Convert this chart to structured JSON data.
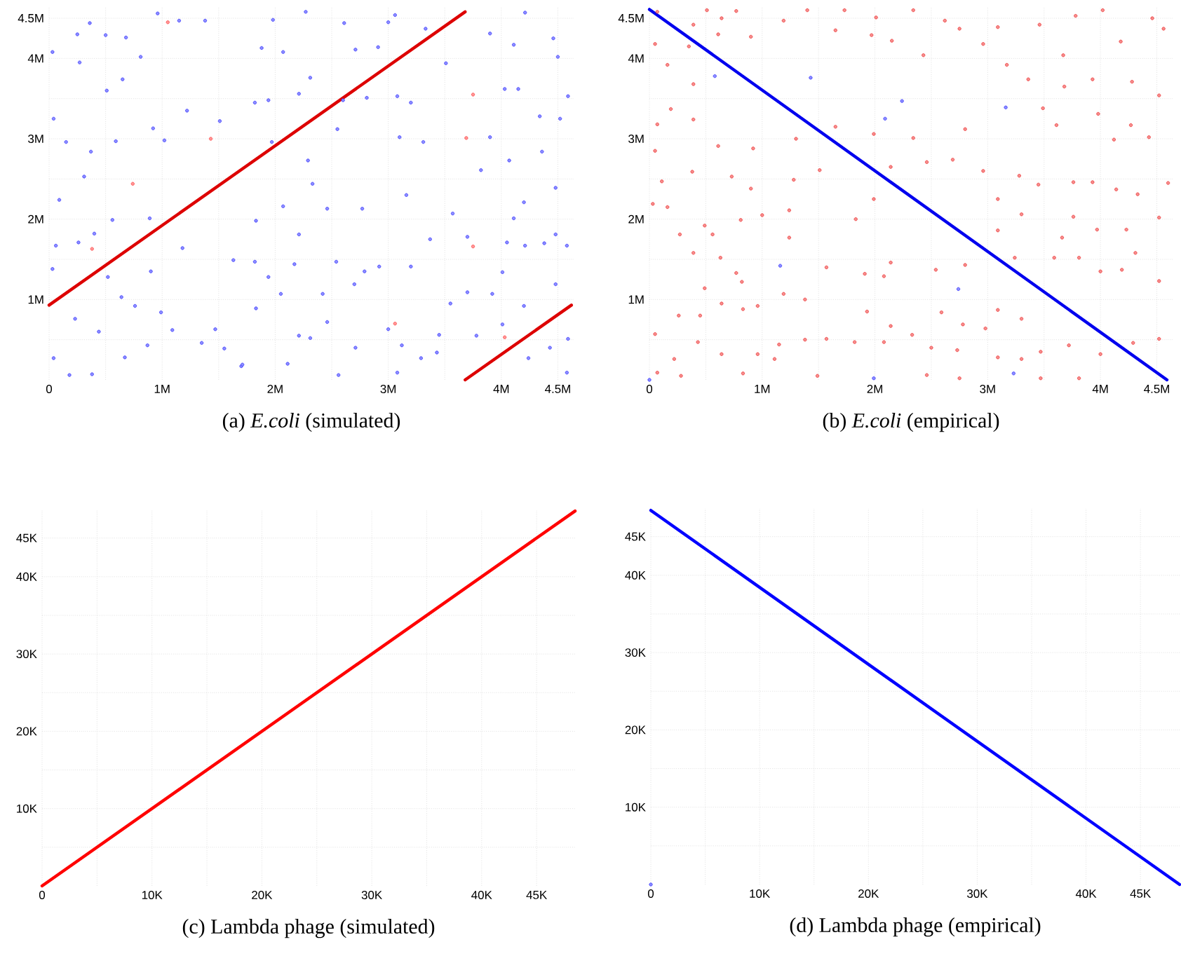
{
  "chart_data": [
    {
      "type": "scatter",
      "title": "(a) *E.coli* (simulated)",
      "xlim": [
        0,
        4640000
      ],
      "ylim": [
        0,
        4640000
      ],
      "grid": true,
      "xticks": [
        {
          "value": 0,
          "label": "0"
        },
        {
          "value": 500000,
          "label": null
        },
        {
          "value": 1000000,
          "label": "1M"
        },
        {
          "value": 1500000,
          "label": null
        },
        {
          "value": 2000000,
          "label": "2M"
        },
        {
          "value": 2500000,
          "label": null
        },
        {
          "value": 3000000,
          "label": "3M"
        },
        {
          "value": 3500000,
          "label": null
        },
        {
          "value": 4000000,
          "label": "4M"
        },
        {
          "value": 4500000,
          "label": "4.5M"
        }
      ],
      "yticks": [
        {
          "value": 500000,
          "label": null
        },
        {
          "value": 1000000,
          "label": "1M"
        },
        {
          "value": 1500000,
          "label": null
        },
        {
          "value": 2000000,
          "label": "2M"
        },
        {
          "value": 2500000,
          "label": null
        },
        {
          "value": 3000000,
          "label": "3M"
        },
        {
          "value": 3500000,
          "label": null
        },
        {
          "value": 4000000,
          "label": "4M"
        },
        {
          "value": 4500000,
          "label": "4.5M"
        }
      ],
      "series": [
        {
          "color": "#3333ff",
          "marker": "circle",
          "x": [
            30000,
            250000,
            360000,
            500000,
            680000,
            810000,
            960000,
            1150000,
            1380000,
            270000,
            510000,
            650000,
            40000,
            150000,
            370000,
            590000,
            920000,
            1020000,
            1220000,
            310000,
            560000,
            890000,
            90000,
            60000,
            260000,
            400000,
            30000,
            520000,
            900000,
            1180000,
            640000,
            230000,
            440000,
            760000,
            990000,
            1090000,
            1350000,
            40000,
            180000,
            380000,
            670000,
            870000,
            1470000,
            1550000,
            1700000,
            1880000,
            1980000,
            2270000,
            2070000,
            2310000,
            1820000,
            1940000,
            1510000,
            1970000,
            2290000,
            2330000,
            2210000,
            2600000,
            2550000,
            2810000,
            2710000,
            2910000,
            2610000,
            1830000,
            2070000,
            2210000,
            2460000,
            2770000,
            2540000,
            2790000,
            1630000,
            1820000,
            1940000,
            2170000,
            2050000,
            2420000,
            2700000,
            2920000,
            1830000,
            2210000,
            2310000,
            2460000,
            2710000,
            3000000,
            2110000,
            1710000,
            2560000,
            3080000,
            3060000,
            3000000,
            3330000,
            3510000,
            3080000,
            3200000,
            3100000,
            3310000,
            3160000,
            3570000,
            3700000,
            3900000,
            4030000,
            4150000,
            4210000,
            4460000,
            4500000,
            4590000,
            3900000,
            4110000,
            4070000,
            4340000,
            4520000,
            4360000,
            3820000,
            4480000,
            4200000,
            4110000,
            4480000,
            4050000,
            4210000,
            4580000,
            3370000,
            3200000,
            3550000,
            3700000,
            3920000,
            4010000,
            4200000,
            4380000,
            4480000,
            4430000,
            4240000,
            4580000,
            4590000,
            3290000,
            3430000,
            3120000,
            3450000,
            3780000,
            4010000
          ],
          "values": [
            4080000,
            4300000,
            4440000,
            4290000,
            4260000,
            4020000,
            4560000,
            4470000,
            4470000,
            3950000,
            3600000,
            3740000,
            3250000,
            2960000,
            2840000,
            2970000,
            3130000,
            2980000,
            3350000,
            2530000,
            1990000,
            2010000,
            2240000,
            1670000,
            1710000,
            1820000,
            1380000,
            1280000,
            1350000,
            1640000,
            1030000,
            760000,
            600000,
            920000,
            840000,
            620000,
            460000,
            270000,
            60000,
            70000,
            280000,
            430000,
            630000,
            390000,
            170000,
            4130000,
            4480000,
            4580000,
            4080000,
            3760000,
            3450000,
            3480000,
            3220000,
            2960000,
            2730000,
            2440000,
            3560000,
            3480000,
            3120000,
            3510000,
            4110000,
            4140000,
            4440000,
            1980000,
            2160000,
            1810000,
            2130000,
            2130000,
            1470000,
            1350000,
            1490000,
            1470000,
            1280000,
            1440000,
            1070000,
            1070000,
            1190000,
            1410000,
            890000,
            550000,
            520000,
            720000,
            400000,
            630000,
            200000,
            190000,
            60000,
            90000,
            4540000,
            4450000,
            4370000,
            3940000,
            3530000,
            3450000,
            3020000,
            2960000,
            2300000,
            2070000,
            1780000,
            3020000,
            3620000,
            3620000,
            4570000,
            4250000,
            4020000,
            3530000,
            4310000,
            4170000,
            2730000,
            3280000,
            3250000,
            2840000,
            2610000,
            2390000,
            2210000,
            2010000,
            1810000,
            1710000,
            1670000,
            1670000,
            1750000,
            1410000,
            950000,
            1090000,
            1070000,
            1340000,
            920000,
            1700000,
            1190000,
            400000,
            270000,
            90000,
            510000,
            270000,
            340000,
            430000,
            560000,
            550000,
            690000
          ]
        },
        {
          "color": "#ff4444",
          "marker": "circle",
          "x": [
            1050000,
            1430000,
            740000,
            380000,
            3060000,
            3690000,
            3750000,
            3750000,
            4030000
          ],
          "values": [
            4450000,
            3000000,
            2440000,
            1630000,
            700000,
            3010000,
            3550000,
            1660000,
            530000
          ]
        },
        {
          "type": "line",
          "color": "#dd0000",
          "x": [
            0,
            3680000
          ],
          "values": [
            930000,
            4580000
          ]
        },
        {
          "type": "line",
          "color": "#dd0000",
          "x": [
            3680000,
            4620000
          ],
          "values": [
            0,
            930000
          ]
        }
      ]
    },
    {
      "type": "scatter",
      "title": "(b) *E.coli* (empirical)",
      "xlim": [
        0,
        4640000
      ],
      "ylim": [
        0,
        4640000
      ],
      "grid": true,
      "xticks": [
        {
          "value": 0,
          "label": "0"
        },
        {
          "value": 500000,
          "label": null
        },
        {
          "value": 1000000,
          "label": "1M"
        },
        {
          "value": 1500000,
          "label": null
        },
        {
          "value": 2000000,
          "label": "2M"
        },
        {
          "value": 2500000,
          "label": null
        },
        {
          "value": 3000000,
          "label": "3M"
        },
        {
          "value": 3500000,
          "label": null
        },
        {
          "value": 4000000,
          "label": "4M"
        },
        {
          "value": 4500000,
          "label": "4.5M"
        }
      ],
      "yticks": [
        {
          "value": 500000,
          "label": null
        },
        {
          "value": 1000000,
          "label": "1M"
        },
        {
          "value": 1500000,
          "label": null
        },
        {
          "value": 2000000,
          "label": "2M"
        },
        {
          "value": 2500000,
          "label": null
        },
        {
          "value": 3000000,
          "label": "3M"
        },
        {
          "value": 3500000,
          "label": null
        },
        {
          "value": 4000000,
          "label": "4M"
        },
        {
          "value": 4500000,
          "label": "4.5M"
        }
      ],
      "series": [
        {
          "color": "#ee3333",
          "marker": "circle",
          "x": [
            70000,
            390000,
            510000,
            640000,
            770000,
            50000,
            160000,
            350000,
            390000,
            610000,
            900000,
            1190000,
            1400000,
            1730000,
            1650000,
            1970000,
            2010000,
            2340000,
            2150000,
            2430000,
            2620000,
            2750000,
            2960000,
            3090000,
            3460000,
            3780000,
            4020000,
            4460000,
            4560000,
            3670000,
            4180000,
            3170000,
            3360000,
            3680000,
            3930000,
            4280000,
            4520000,
            70000,
            390000,
            190000,
            610000,
            920000,
            1300000,
            1650000,
            1990000,
            2800000,
            2340000,
            3490000,
            3610000,
            3980000,
            4120000,
            4270000,
            4430000,
            50000,
            110000,
            380000,
            730000,
            900000,
            1280000,
            1510000,
            30000,
            160000,
            490000,
            560000,
            810000,
            1000000,
            1240000,
            270000,
            390000,
            630000,
            770000,
            1240000,
            1830000,
            1990000,
            2140000,
            2460000,
            2690000,
            2960000,
            3090000,
            3280000,
            3450000,
            3760000,
            3930000,
            4140000,
            4330000,
            4600000,
            3090000,
            3300000,
            3660000,
            3760000,
            3970000,
            4230000,
            4520000,
            3240000,
            3590000,
            3810000,
            4310000,
            4000000,
            4190000,
            4520000,
            1910000,
            2080000,
            2140000,
            2540000,
            2800000,
            2590000,
            2780000,
            2980000,
            3090000,
            3300000,
            1930000,
            2140000,
            2330000,
            2500000,
            2730000,
            3090000,
            3300000,
            3470000,
            3720000,
            4000000,
            4290000,
            4520000,
            3470000,
            3810000,
            2750000,
            2460000,
            2080000,
            1820000,
            1570000,
            1380000,
            1150000,
            1110000,
            1490000,
            960000,
            830000,
            640000,
            430000,
            220000,
            280000,
            70000,
            50000,
            260000,
            450000,
            640000,
            830000,
            960000,
            1190000,
            1380000,
            490000,
            1570000,
            820000
          ],
          "values": [
            4580000,
            4420000,
            4600000,
            4500000,
            4590000,
            4180000,
            3920000,
            4150000,
            3680000,
            4300000,
            4270000,
            4470000,
            4600000,
            4600000,
            4350000,
            4290000,
            4510000,
            4600000,
            4220000,
            4040000,
            4470000,
            4370000,
            4180000,
            4390000,
            4420000,
            4530000,
            4600000,
            4500000,
            4370000,
            4040000,
            4210000,
            3920000,
            3740000,
            3650000,
            3740000,
            3710000,
            3540000,
            3180000,
            3240000,
            3370000,
            2910000,
            2880000,
            3000000,
            3150000,
            3060000,
            3120000,
            3010000,
            3380000,
            3170000,
            3310000,
            2990000,
            3170000,
            3020000,
            2850000,
            2470000,
            2590000,
            2530000,
            2380000,
            2490000,
            2610000,
            2190000,
            2150000,
            1920000,
            1810000,
            1990000,
            2050000,
            2110000,
            1810000,
            1580000,
            1520000,
            1330000,
            1770000,
            2000000,
            2250000,
            2650000,
            2710000,
            2740000,
            2600000,
            2250000,
            2540000,
            2430000,
            2460000,
            2460000,
            2370000,
            2310000,
            2450000,
            1860000,
            2060000,
            1770000,
            2030000,
            1870000,
            1870000,
            2020000,
            1520000,
            1520000,
            1520000,
            1580000,
            1350000,
            1370000,
            1230000,
            1320000,
            1290000,
            1460000,
            1370000,
            1430000,
            840000,
            690000,
            640000,
            870000,
            760000,
            850000,
            670000,
            560000,
            400000,
            370000,
            280000,
            260000,
            350000,
            430000,
            320000,
            460000,
            510000,
            20000,
            20000,
            20000,
            60000,
            470000,
            470000,
            510000,
            500000,
            440000,
            260000,
            50000,
            320000,
            80000,
            320000,
            470000,
            260000,
            50000,
            90000,
            570000,
            800000,
            800000,
            950000,
            880000,
            920000,
            1070000,
            1000000,
            1140000,
            1400000,
            1220000
          ]
        },
        {
          "color": "#3333ff",
          "marker": "circle",
          "x": [
            580000,
            1430000,
            2240000,
            2090000,
            3160000,
            1160000,
            2740000,
            3230000,
            1990000,
            0
          ],
          "values": [
            3780000,
            3760000,
            3470000,
            3250000,
            3390000,
            1420000,
            1130000,
            80000,
            20000,
            0
          ]
        },
        {
          "type": "line",
          "color": "#0000ee",
          "x": [
            0,
            4590000
          ],
          "values": [
            4610000,
            0
          ]
        }
      ]
    },
    {
      "type": "line",
      "title": "(c) Lambda phage (simulated)",
      "xlim": [
        0,
        48500
      ],
      "ylim": [
        0,
        48600
      ],
      "grid": true,
      "xticks": [
        {
          "value": 0,
          "label": "0"
        },
        {
          "value": 5000,
          "label": null
        },
        {
          "value": 10000,
          "label": "10K"
        },
        {
          "value": 15000,
          "label": null
        },
        {
          "value": 20000,
          "label": "20K"
        },
        {
          "value": 25000,
          "label": null
        },
        {
          "value": 30000,
          "label": "30K"
        },
        {
          "value": 35000,
          "label": null
        },
        {
          "value": 40000,
          "label": "40K"
        },
        {
          "value": 45000,
          "label": "45K"
        }
      ],
      "yticks": [
        {
          "value": 5000,
          "label": null
        },
        {
          "value": 10000,
          "label": "10K"
        },
        {
          "value": 15000,
          "label": null
        },
        {
          "value": 20000,
          "label": "20K"
        },
        {
          "value": 25000,
          "label": null
        },
        {
          "value": 30000,
          "label": "30K"
        },
        {
          "value": 35000,
          "label": null
        },
        {
          "value": 40000,
          "label": "40K"
        },
        {
          "value": 45000,
          "label": "45K"
        }
      ],
      "series": [
        {
          "color": "#ff0000",
          "x": [
            0,
            48500
          ],
          "values": [
            0,
            48500
          ]
        }
      ]
    },
    {
      "type": "line",
      "title": "(d) Lambda phage (empirical)",
      "xlim": [
        0,
        48600
      ],
      "ylim": [
        0,
        48600
      ],
      "grid": true,
      "xticks": [
        {
          "value": 0,
          "label": "0"
        },
        {
          "value": 5000,
          "label": null
        },
        {
          "value": 10000,
          "label": "10K"
        },
        {
          "value": 15000,
          "label": null
        },
        {
          "value": 20000,
          "label": "20K"
        },
        {
          "value": 25000,
          "label": null
        },
        {
          "value": 30000,
          "label": "30K"
        },
        {
          "value": 35000,
          "label": null
        },
        {
          "value": 40000,
          "label": "40K"
        },
        {
          "value": 45000,
          "label": "45K"
        }
      ],
      "yticks": [
        {
          "value": 5000,
          "label": null
        },
        {
          "value": 10000,
          "label": "10K"
        },
        {
          "value": 15000,
          "label": null
        },
        {
          "value": 20000,
          "label": "20K"
        },
        {
          "value": 25000,
          "label": null
        },
        {
          "value": 30000,
          "label": "30K"
        },
        {
          "value": 35000,
          "label": null
        },
        {
          "value": 40000,
          "label": "40K"
        },
        {
          "value": 45000,
          "label": "45K"
        }
      ],
      "series": [
        {
          "type": "scatter",
          "marker": "circle",
          "color": "#3333ff",
          "x": [
            0
          ],
          "values": [
            0
          ]
        },
        {
          "color": "#0000ff",
          "x": [
            0,
            48600
          ],
          "values": [
            48400,
            0
          ]
        }
      ]
    }
  ]
}
